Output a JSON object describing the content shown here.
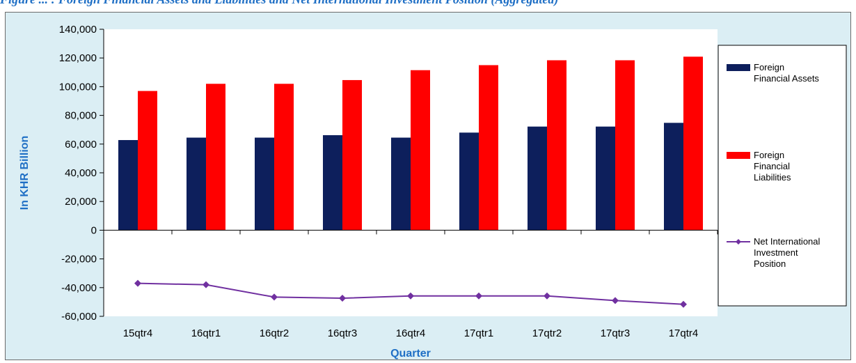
{
  "page": {
    "heading": "Figure ... : Foreign Financial Assets and Liabilities and Net International Investment Position (Aggregated)"
  },
  "chart_data": {
    "type": "bar",
    "categories": [
      "15qtr4",
      "16qtr1",
      "16qtr2",
      "16qtr3",
      "16qtr4",
      "17qtr1",
      "17qtr2",
      "17qtr3",
      "17qtr4"
    ],
    "series": [
      {
        "name": "Foreign Financial Assets",
        "type": "bar",
        "color": "#0d1f5c",
        "values": [
          62800,
          64500,
          64500,
          66200,
          64500,
          68000,
          72200,
          72200,
          74800
        ]
      },
      {
        "name": "Foreign Financial Liabilities",
        "type": "bar",
        "color": "#ff0000",
        "values": [
          97000,
          102000,
          102000,
          104600,
          111500,
          115000,
          118400,
          118400,
          120900
        ]
      },
      {
        "name": "Net International Investment Position",
        "type": "line",
        "color": "#7030a0",
        "values": [
          -37000,
          -38000,
          -46600,
          -47400,
          -45800,
          -45800,
          -45800,
          -49000,
          -51600
        ]
      }
    ],
    "ylim": [
      -60000,
      140000
    ],
    "yticks": [
      {
        "value": 140000,
        "label": "140,000"
      },
      {
        "value": 120000,
        "label": "120,000"
      },
      {
        "value": 100000,
        "label": "100,000"
      },
      {
        "value": 80000,
        "label": "80,000"
      },
      {
        "value": 60000,
        "label": "60,000"
      },
      {
        "value": 40000,
        "label": "40,000"
      },
      {
        "value": 20000,
        "label": "20,000"
      },
      {
        "value": 0,
        "label": "0"
      },
      {
        "value": -20000,
        "label": "-20,000"
      },
      {
        "value": -40000,
        "label": "-40,000"
      },
      {
        "value": -60000,
        "label": "-60,000"
      }
    ],
    "xlabel": "Quarter",
    "ylabel": "In KHR Billion",
    "grid": false,
    "legend": {
      "position": "right",
      "entries": [
        {
          "series": 0,
          "lines": [
            "Foreign",
            "Financial Assets"
          ]
        },
        {
          "series": 1,
          "lines": [
            "Foreign",
            "Financial",
            "Liabilities"
          ]
        },
        {
          "series": 2,
          "lines": [
            "Net International",
            "Investment",
            "Position"
          ]
        }
      ]
    }
  }
}
